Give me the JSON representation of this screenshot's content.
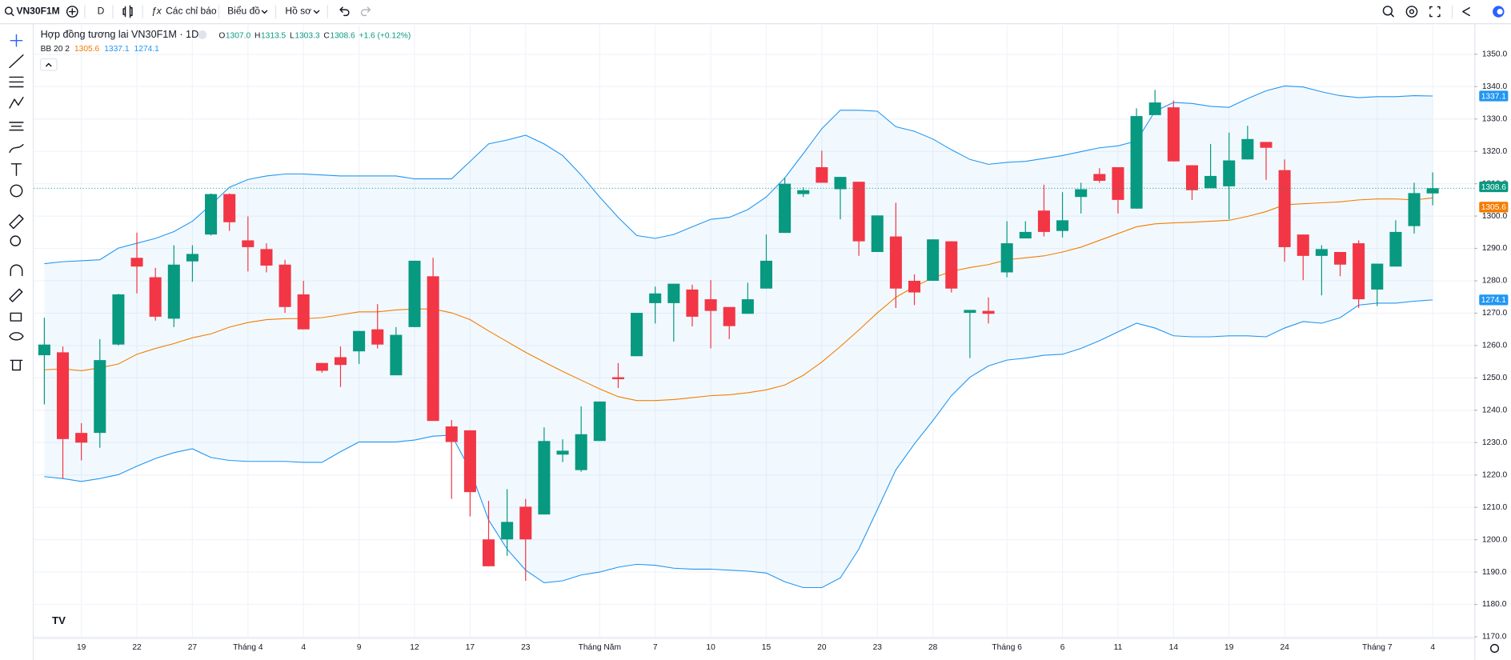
{
  "toolbar": {
    "symbol": "VN30F1M",
    "interval": "D",
    "indicators": "Các chỉ báo",
    "chart": "Biểu đồ",
    "profile": "Hồ sơ"
  },
  "legend": {
    "title": "Hợp đồng tương lai VN30F1M · 1D",
    "ohlc": [
      {
        "label": "O",
        "value": "1307.0"
      },
      {
        "label": "H",
        "value": "1313.5"
      },
      {
        "label": "L",
        "value": "1303.3"
      },
      {
        "label": "C",
        "value": "1308.6"
      }
    ],
    "change": "+1.6 (+0.12%)",
    "indicator": "BB 20 2"
  },
  "chart_data": {
    "type": "candlestick",
    "categories": [
      null,
      null,
      "19",
      null,
      null,
      "22",
      null,
      null,
      "27",
      null,
      null,
      "Tháng 4",
      null,
      null,
      "4",
      null,
      null,
      "9",
      null,
      null,
      "12",
      null,
      null,
      "17",
      null,
      null,
      "23",
      null,
      null,
      null,
      "Tháng Năm",
      null,
      null,
      "7",
      null,
      null,
      "10",
      null,
      null,
      "15",
      null,
      null,
      "20",
      null,
      null,
      "23",
      null,
      null,
      "28",
      null,
      null,
      null,
      "Tháng 6",
      null,
      null,
      "6",
      null,
      null,
      "11",
      null,
      null,
      "14",
      null,
      null,
      "19",
      null,
      null,
      "24",
      null,
      null,
      null,
      null,
      "Tháng 7",
      null,
      null,
      "4"
    ],
    "open": [
      1257,
      1257.9,
      1233,
      1233,
      1260.3,
      1287.1,
      1281.1,
      1268.3,
      1286,
      1294.3,
      1306.8,
      1292.5,
      1289.8,
      1285,
      1275.8,
      1254.6,
      1256.4,
      1258.2,
      1265,
      1250.8,
      1265.7,
      1281.4,
      1235,
      1233.8,
      1200.1,
      1200.1,
      1210.2,
      1207.8,
      1226.3,
      1221.5,
      1230.5,
      1250.2,
      1256.7,
      1273.1,
      1273.1,
      1277.3,
      1274.3,
      1271.9,
      1269.8,
      1277.6,
      1294.8,
      1306.8,
      1315.1,
      1308.3,
      1310.6,
      1288.9,
      1293.7,
      1280,
      1280,
      1292.2,
      1270.1,
      1270.7,
      1282.6,
      1293.1,
      1301.7,
      1295.4,
      1305.9,
      1313,
      1315.1,
      1302.3,
      1331.2,
      1333.6,
      1315.7,
      1308.6,
      1309.2,
      1317.5,
      1322.9,
      1314.2,
      1294.3,
      1287.7,
      1288.9,
      1291.6,
      1277.3,
      1284.4,
      1296.9,
      1307.0
    ],
    "high": [
      1268.6,
      1259.7,
      1236,
      1262,
      1276,
      1294.9,
      1284,
      1291,
      1291,
      1307,
      1307,
      1299.9,
      1291.6,
      1286.5,
      1280,
      1254.6,
      1259.7,
      1264.5,
      1272.8,
      1265.7,
      1286.2,
      1287.1,
      1237,
      1233.8,
      1212,
      1215.6,
      1212.6,
      1234.7,
      1231,
      1241.2,
      1242.7,
      1254.6,
      1270.1,
      1278.2,
      1279.1,
      1278.8,
      1280.2,
      1271.9,
      1279.4,
      1294.3,
      1311.8,
      1308.9,
      1320.2,
      1312.1,
      1310.6,
      1300.2,
      1304.1,
      1282,
      1292.8,
      1292.2,
      1271,
      1274.9,
      1298.4,
      1298.4,
      1309.7,
      1307.4,
      1310.3,
      1314.8,
      1315.1,
      1333.3,
      1339,
      1335.7,
      1315.7,
      1322.3,
      1325.8,
      1327.9,
      1322.9,
      1317.5,
      1294.3,
      1291,
      1288.9,
      1292.5,
      1285.3,
      1298.7,
      1310.3,
      1313.5
    ],
    "low": [
      1241.8,
      1218.9,
      1224.5,
      1228.4,
      1260,
      1276.1,
      1267.7,
      1265.7,
      1279.7,
      1294,
      1295.4,
      1282.9,
      1282.6,
      1270.1,
      1265,
      1251.6,
      1247.2,
      1254.3,
      1259.1,
      1250.8,
      1265.7,
      1236.7,
      1212.6,
      1207.2,
      1191.8,
      1195,
      1187.3,
      1207.8,
      1224,
      1221,
      1230.5,
      1246.9,
      1256.7,
      1266.8,
      1261.2,
      1265.9,
      1259.1,
      1262,
      1269.8,
      1277.6,
      1294.8,
      1305.9,
      1310.3,
      1299,
      1287.7,
      1288.9,
      1271.6,
      1272.5,
      1280,
      1276.4,
      1256.1,
      1266.8,
      1281.1,
      1293.1,
      1293.7,
      1293.4,
      1300.8,
      1310.3,
      1300.8,
      1302.3,
      1331.2,
      1316.9,
      1305,
      1308.6,
      1299,
      1317.5,
      1311.2,
      1285.9,
      1280.2,
      1275.5,
      1281.4,
      1271.6,
      1272.2,
      1284.4,
      1294.6,
      1303.3
    ],
    "close": [
      1260.3,
      1231.1,
      1230,
      1255.5,
      1275.8,
      1284.4,
      1268.9,
      1285,
      1288.3,
      1306.8,
      1298.1,
      1290.4,
      1284.7,
      1271.9,
      1265,
      1252.2,
      1254,
      1264.5,
      1260.3,
      1263.3,
      1286.2,
      1236.7,
      1230.2,
      1214.7,
      1191.8,
      1205.5,
      1200.1,
      1230.5,
      1227.5,
      1232.6,
      1242.7,
      1249.6,
      1270.1,
      1276.1,
      1279.1,
      1268.9,
      1270.7,
      1266,
      1274.3,
      1286.2,
      1310,
      1308,
      1310.3,
      1312.1,
      1292.2,
      1300.2,
      1277.6,
      1276.4,
      1292.8,
      1277.6,
      1271,
      1269.8,
      1291.6,
      1295.1,
      1295.1,
      1298.7,
      1308.3,
      1310.9,
      1305,
      1330.9,
      1335.1,
      1316.9,
      1308,
      1312.4,
      1317.2,
      1323.8,
      1321.1,
      1290.4,
      1287.7,
      1289.8,
      1285,
      1274.3,
      1285.3,
      1295.1,
      1307.1,
      1308.6
    ],
    "up_color": "#089981",
    "down_color": "#f23645",
    "bands": {
      "upper": [
        1285.3,
        1285.9,
        1286.2,
        1286.5,
        1290.1,
        1291.6,
        1293.1,
        1295.2,
        1298.4,
        1303.5,
        1308.9,
        1311.3,
        1312.4,
        1313,
        1313,
        1312.7,
        1312.4,
        1312.4,
        1312.4,
        1312.4,
        1311.5,
        1311.5,
        1311.5,
        1316.9,
        1322.3,
        1323.5,
        1325,
        1322.3,
        1318.7,
        1312.7,
        1305.9,
        1299.6,
        1294,
        1293.1,
        1294.3,
        1296.7,
        1299,
        1299.6,
        1302,
        1305.9,
        1311.8,
        1319.3,
        1327,
        1332.7,
        1332.7,
        1332.4,
        1327.6,
        1326.2,
        1323.8,
        1320.5,
        1317.5,
        1316,
        1316.6,
        1316.9,
        1317.8,
        1318.7,
        1319.9,
        1321.1,
        1321.7,
        1323.2,
        1332.4,
        1335.1,
        1334.8,
        1333.9,
        1333.6,
        1336.3,
        1338.7,
        1340.2,
        1339.9,
        1338.4,
        1337.2,
        1336.6,
        1336.9,
        1336.9,
        1337.2,
        1337.1
      ],
      "middle": [
        1252.5,
        1252.8,
        1252.2,
        1253.1,
        1254.3,
        1257.3,
        1259.1,
        1260.6,
        1262.4,
        1263.6,
        1265.7,
        1267.1,
        1268,
        1268.3,
        1268.3,
        1268.6,
        1269.5,
        1270.4,
        1270.4,
        1271,
        1271.3,
        1271.3,
        1270.1,
        1268,
        1264.5,
        1261.2,
        1257.9,
        1254.9,
        1252,
        1249.3,
        1246.6,
        1244.2,
        1243,
        1243,
        1243.3,
        1243.9,
        1244.5,
        1244.8,
        1245.4,
        1246.3,
        1247.8,
        1250.8,
        1254.9,
        1259.7,
        1264.8,
        1270.1,
        1274.9,
        1278.2,
        1280.9,
        1282.9,
        1284.1,
        1285,
        1286.5,
        1287.1,
        1287.7,
        1288.9,
        1290.4,
        1292.5,
        1294.6,
        1296.7,
        1297.6,
        1297.9,
        1298.1,
        1298.4,
        1298.7,
        1299.9,
        1301.4,
        1303.5,
        1303.8,
        1304.1,
        1304.4,
        1305,
        1305.3,
        1305.3,
        1305,
        1305.6
      ],
      "lower": [
        1219.5,
        1218.9,
        1218,
        1218.9,
        1220.1,
        1222.7,
        1225.1,
        1226.9,
        1228.1,
        1225.4,
        1224.5,
        1224.2,
        1224.2,
        1224.2,
        1223.9,
        1223.9,
        1227.2,
        1230.2,
        1230.2,
        1230.2,
        1230.8,
        1232,
        1232.3,
        1221.6,
        1206.1,
        1197.1,
        1190.6,
        1186.7,
        1187.3,
        1189.1,
        1190,
        1191.5,
        1192.4,
        1192.1,
        1191.2,
        1190.9,
        1190.9,
        1190.6,
        1190.3,
        1189.7,
        1187,
        1185.2,
        1185.2,
        1188.2,
        1197.1,
        1209.3,
        1221.6,
        1229.6,
        1236.8,
        1244.5,
        1250.2,
        1253.7,
        1255.5,
        1256.1,
        1257,
        1257.3,
        1259.1,
        1261.5,
        1264.2,
        1266.9,
        1265.4,
        1263,
        1262.7,
        1262.7,
        1263,
        1263,
        1262.7,
        1265.4,
        1267.4,
        1266.9,
        1268.6,
        1272.5,
        1273.1,
        1273.1,
        1273.7,
        1274.1
      ],
      "band_color": "#2196f3",
      "middle_color": "#f57c00",
      "fill": "rgba(33,150,243,0.06)"
    },
    "ylim": [
      1170,
      1359
    ],
    "yticks": [
      {
        "value": 1170,
        "label": "1170.0"
      },
      {
        "value": 1180,
        "label": "1180.0"
      },
      {
        "value": 1190,
        "label": "1190.0"
      },
      {
        "value": 1200,
        "label": "1200.0"
      },
      {
        "value": 1210,
        "label": "1210.0"
      },
      {
        "value": 1220,
        "label": "1220.0"
      },
      {
        "value": 1230,
        "label": "1230.0"
      },
      {
        "value": 1240,
        "label": "1240.0"
      },
      {
        "value": 1250,
        "label": "1250.0"
      },
      {
        "value": 1260,
        "label": "1260.0"
      },
      {
        "value": 1270,
        "label": "1270.0"
      },
      {
        "value": 1280,
        "label": "1280.0"
      },
      {
        "value": 1290,
        "label": "1290.0"
      },
      {
        "value": 1300,
        "label": "1300.0"
      },
      {
        "value": 1310,
        "label": "1310.0"
      },
      {
        "value": 1320,
        "label": "1320.0"
      },
      {
        "value": 1330,
        "label": "1330.0"
      },
      {
        "value": 1340,
        "label": "1340.0"
      },
      {
        "value": 1350,
        "label": "1350.0"
      }
    ],
    "grid": true
  }
}
